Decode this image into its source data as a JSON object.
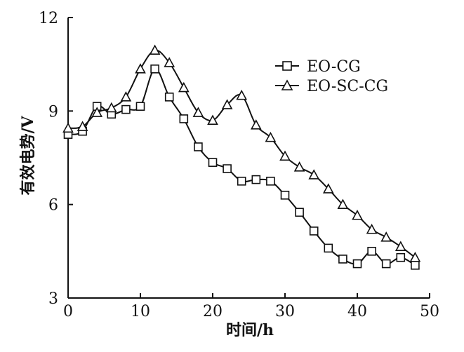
{
  "chart_data": {
    "type": "line",
    "title": "",
    "xlabel": "时间/h",
    "ylabel": "有效电势/V",
    "xlim": [
      0,
      50
    ],
    "ylim": [
      3,
      12
    ],
    "xticks": [
      0,
      10,
      20,
      30,
      40,
      50
    ],
    "yticks": [
      3,
      6,
      9,
      12
    ],
    "grid": false,
    "legend_position": "top-right",
    "series": [
      {
        "name": "EO-CG",
        "marker": "square",
        "x": [
          0,
          2,
          4,
          6,
          8,
          10,
          12,
          14,
          16,
          18,
          20,
          22,
          24,
          26,
          28,
          30,
          32,
          34,
          36,
          38,
          40,
          42,
          44,
          46,
          48
        ],
        "y": [
          8.25,
          8.35,
          9.15,
          8.9,
          9.05,
          9.15,
          10.35,
          9.45,
          8.75,
          7.85,
          7.35,
          7.15,
          6.75,
          6.8,
          6.75,
          6.3,
          5.75,
          5.15,
          4.6,
          4.25,
          4.1,
          4.5,
          4.1,
          4.3,
          4.05
        ]
      },
      {
        "name": "EO-SC-CG",
        "marker": "triangle",
        "x": [
          0,
          2,
          4,
          6,
          8,
          10,
          12,
          14,
          16,
          18,
          20,
          22,
          24,
          26,
          28,
          30,
          32,
          34,
          36,
          38,
          40,
          42,
          44,
          46,
          48
        ],
        "y": [
          8.45,
          8.5,
          8.95,
          9.1,
          9.45,
          10.35,
          10.95,
          10.55,
          9.75,
          8.95,
          8.7,
          9.2,
          9.5,
          8.55,
          8.15,
          7.55,
          7.2,
          6.95,
          6.5,
          6.0,
          5.65,
          5.2,
          4.95,
          4.65,
          4.3
        ]
      }
    ]
  }
}
